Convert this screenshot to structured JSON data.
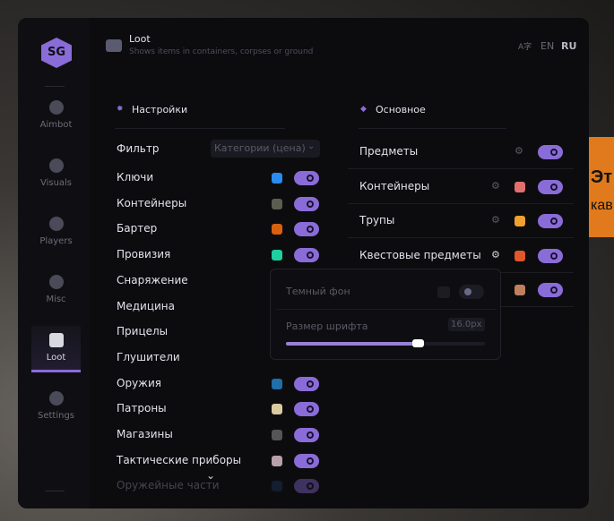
{
  "background_panel": {
    "line1": "Эт",
    "line2": "кав",
    "color": "#e07a1c"
  },
  "logo": {
    "text": "SG"
  },
  "sidebar": {
    "items": [
      {
        "label": "Aimbot",
        "icon": "alien-icon"
      },
      {
        "label": "Visuals",
        "icon": "vr-headset-icon"
      },
      {
        "label": "Players",
        "icon": "users-icon"
      },
      {
        "label": "Misc",
        "icon": "dots-icon"
      },
      {
        "label": "Loot",
        "icon": "briefcase-icon",
        "active": true
      },
      {
        "label": "Settings",
        "icon": "list-icon"
      }
    ]
  },
  "header": {
    "title": "Loot",
    "subtitle": "Shows items in containers, corpses or ground",
    "lang_icon": "translate-icon",
    "lang": [
      "EN",
      "RU"
    ],
    "active_lang": "RU"
  },
  "left": {
    "title": "Настройки",
    "filter_label": "Фильтр",
    "filter_value": "Категории (цена)",
    "items": [
      {
        "label": "Ключи",
        "color": "#2a8cf0",
        "on": true
      },
      {
        "label": "Контейнеры",
        "color": "#5a5e4e",
        "on": true
      },
      {
        "label": "Бартер",
        "color": "#d9600f",
        "on": true
      },
      {
        "label": "Провизия",
        "color": "#1fd0a0",
        "on": true
      },
      {
        "label": "Снаряжение"
      },
      {
        "label": "Медицина"
      },
      {
        "label": "Прицелы"
      },
      {
        "label": "Глушители"
      },
      {
        "label": "Оружия",
        "color": "#1f6fa8",
        "on": true
      },
      {
        "label": "Патроны",
        "color": "#dccaa0",
        "on": true
      },
      {
        "label": "Магазины",
        "color": "#555558",
        "on": true
      },
      {
        "label": "Тактические приборы",
        "color": "#b8a0a8",
        "on": true
      },
      {
        "label": "Оружейные части",
        "color": "#1a3050",
        "on": true
      }
    ]
  },
  "right": {
    "title": "Основное",
    "items": [
      {
        "label": "Предметы",
        "gear": true,
        "on": true
      },
      {
        "label": "Контейнеры",
        "gear": true,
        "color": "#e07070",
        "on": true
      },
      {
        "label": "Трупы",
        "gear": true,
        "color": "#f0a030",
        "on": true
      },
      {
        "label": "Квестовые предметы",
        "gear": true,
        "color": "#e0582a",
        "on": true
      },
      {
        "label": "",
        "color": "#c08060",
        "on": true
      }
    ]
  },
  "popup": {
    "dark_bg_label": "Темный фон",
    "dark_bg_on": false,
    "font_size_label": "Размер шрифта",
    "font_size_value": "16.0px",
    "font_size_fraction": 0.66
  }
}
